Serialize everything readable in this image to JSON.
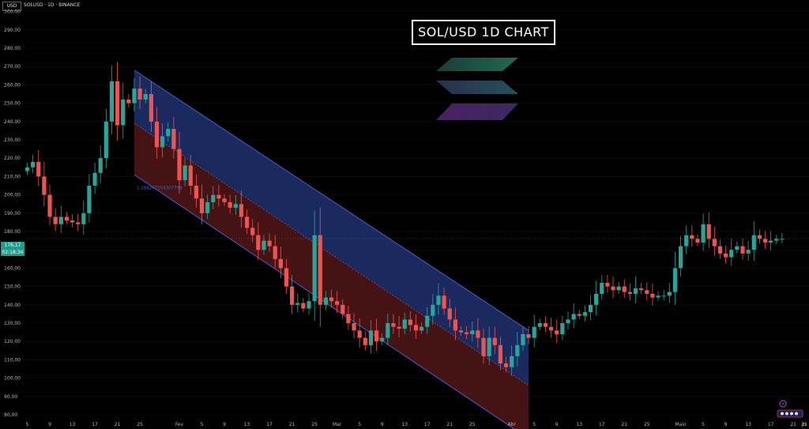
{
  "header": {
    "symbol_line": "SOLUSD · 1D · BINANCE",
    "currency": "USD"
  },
  "title": "SOL/USD 1D CHART",
  "last_price": {
    "value": "176,17",
    "countdown": "02:18:34",
    "color": "#1f9e8b"
  },
  "channel_label": "1,188207154307799",
  "colors": {
    "bull": "#26a69a",
    "bear": "#ef5350",
    "channel_upper_fill": "#1b2c63",
    "channel_lower_fill": "#4a1416",
    "channel_line": "#3d63dd"
  },
  "chart_data": {
    "type": "candlestick",
    "title": "SOL/USD 1D CHART",
    "ylabel": "USD",
    "ylim": [
      77,
      302
    ],
    "y_ticks": [
      80,
      90,
      100,
      110,
      120,
      130,
      140,
      150,
      160,
      170,
      180,
      190,
      200,
      210,
      220,
      230,
      240,
      250,
      260,
      270,
      280,
      290,
      300
    ],
    "y_tick_labels": [
      "80,00",
      "90,00",
      "100,00",
      "110,00",
      "120,00",
      "130,00",
      "140,00",
      "150,00",
      "160,00",
      "170,00",
      "180,00",
      "190,00",
      "200,00",
      "210,00",
      "220,00",
      "230,00",
      "240,00",
      "250,00",
      "260,00",
      "270,00",
      "280,00",
      "290,00",
      "300,00"
    ],
    "x_ticks": [
      {
        "label": "5",
        "i": 0
      },
      {
        "label": "9",
        "i": 4
      },
      {
        "label": "13",
        "i": 8
      },
      {
        "label": "17",
        "i": 12
      },
      {
        "label": "21",
        "i": 16
      },
      {
        "label": "25",
        "i": 20
      },
      {
        "label": "Fev",
        "i": 27
      },
      {
        "label": "5",
        "i": 31
      },
      {
        "label": "9",
        "i": 35
      },
      {
        "label": "13",
        "i": 39
      },
      {
        "label": "17",
        "i": 43
      },
      {
        "label": "21",
        "i": 47
      },
      {
        "label": "25",
        "i": 51
      },
      {
        "label": "Mar",
        "i": 55
      },
      {
        "label": "5",
        "i": 59
      },
      {
        "label": "9",
        "i": 63
      },
      {
        "label": "13",
        "i": 67
      },
      {
        "label": "17",
        "i": 71
      },
      {
        "label": "21",
        "i": 75
      },
      {
        "label": "25",
        "i": 79
      },
      {
        "label": "Abr",
        "i": 86
      },
      {
        "label": "5",
        "i": 90
      },
      {
        "label": "9",
        "i": 94
      },
      {
        "label": "13",
        "i": 98
      },
      {
        "label": "17",
        "i": 102
      },
      {
        "label": "21",
        "i": 106
      },
      {
        "label": "25",
        "i": 110
      },
      {
        "label": "Maio",
        "i": 116
      },
      {
        "label": "5",
        "i": 120
      },
      {
        "label": "9",
        "i": 124
      },
      {
        "label": "13",
        "i": 128
      },
      {
        "label": "17",
        "i": 132
      },
      {
        "label": "21",
        "i": 136
      },
      {
        "label": "25",
        "i": 140
      },
      {
        "label": "Ju",
        "i": 147
      }
    ],
    "last_price": 176.17,
    "regression_channel": {
      "start_index": 19,
      "end_index": 89,
      "upper": [
        268,
        126
      ],
      "middle": [
        239,
        96
      ],
      "lower": [
        211,
        67
      ]
    },
    "close_anchors": [
      [
        0,
        215
      ],
      [
        1,
        218
      ],
      [
        2,
        210
      ],
      [
        3,
        200
      ],
      [
        4,
        188
      ],
      [
        5,
        184
      ],
      [
        6,
        188
      ],
      [
        7,
        186
      ],
      [
        8,
        185
      ],
      [
        9,
        184
      ],
      [
        10,
        190
      ],
      [
        11,
        205
      ],
      [
        12,
        212
      ],
      [
        13,
        220
      ],
      [
        14,
        240
      ],
      [
        15,
        262
      ],
      [
        16,
        238
      ],
      [
        17,
        252
      ],
      [
        18,
        250
      ],
      [
        19,
        258
      ],
      [
        20,
        252
      ],
      [
        21,
        255
      ],
      [
        22,
        240
      ],
      [
        23,
        226
      ],
      [
        24,
        232
      ],
      [
        25,
        236
      ],
      [
        26,
        225
      ],
      [
        27,
        208
      ],
      [
        28,
        216
      ],
      [
        29,
        205
      ],
      [
        30,
        198
      ],
      [
        31,
        190
      ],
      [
        32,
        196
      ],
      [
        33,
        200
      ],
      [
        34,
        198
      ],
      [
        35,
        196
      ],
      [
        36,
        193
      ],
      [
        37,
        195
      ],
      [
        38,
        188
      ],
      [
        39,
        182
      ],
      [
        40,
        178
      ],
      [
        41,
        170
      ],
      [
        42,
        175
      ],
      [
        43,
        172
      ],
      [
        44,
        165
      ],
      [
        45,
        160
      ],
      [
        46,
        150
      ],
      [
        47,
        140
      ],
      [
        48,
        141
      ],
      [
        49,
        138
      ],
      [
        50,
        142
      ],
      [
        51,
        178
      ],
      [
        52,
        140
      ],
      [
        53,
        144
      ],
      [
        54,
        142
      ],
      [
        55,
        140
      ],
      [
        56,
        135
      ],
      [
        57,
        130
      ],
      [
        58,
        126
      ],
      [
        59,
        122
      ],
      [
        60,
        118
      ],
      [
        61,
        126
      ],
      [
        62,
        120
      ],
      [
        63,
        122
      ],
      [
        64,
        130
      ],
      [
        65,
        128
      ],
      [
        66,
        127
      ],
      [
        67,
        132
      ],
      [
        68,
        129
      ],
      [
        69,
        126
      ],
      [
        70,
        128
      ],
      [
        71,
        134
      ],
      [
        72,
        140
      ],
      [
        73,
        145
      ],
      [
        74,
        138
      ],
      [
        75,
        132
      ],
      [
        76,
        126
      ],
      [
        77,
        125
      ],
      [
        78,
        124
      ],
      [
        79,
        126
      ],
      [
        80,
        122
      ],
      [
        81,
        112
      ],
      [
        82,
        122
      ],
      [
        83,
        118
      ],
      [
        84,
        108
      ],
      [
        85,
        106
      ],
      [
        86,
        112
      ],
      [
        87,
        118
      ],
      [
        88,
        124
      ],
      [
        89,
        122
      ],
      [
        90,
        128
      ],
      [
        91,
        130
      ],
      [
        92,
        128
      ],
      [
        93,
        126
      ],
      [
        94,
        124
      ],
      [
        95,
        130
      ],
      [
        96,
        132
      ],
      [
        97,
        135
      ],
      [
        98,
        134
      ],
      [
        99,
        136
      ],
      [
        100,
        140
      ],
      [
        101,
        146
      ],
      [
        102,
        152
      ],
      [
        103,
        150
      ],
      [
        104,
        148
      ],
      [
        105,
        150
      ],
      [
        106,
        147
      ],
      [
        107,
        146
      ],
      [
        108,
        149
      ],
      [
        109,
        148
      ],
      [
        110,
        146
      ],
      [
        111,
        144
      ],
      [
        112,
        145
      ],
      [
        113,
        145
      ],
      [
        114,
        147
      ],
      [
        115,
        160
      ],
      [
        116,
        172
      ],
      [
        117,
        178
      ],
      [
        118,
        176
      ],
      [
        119,
        174
      ],
      [
        120,
        184
      ],
      [
        121,
        176
      ],
      [
        122,
        172
      ],
      [
        123,
        168
      ],
      [
        124,
        166
      ],
      [
        125,
        170
      ],
      [
        126,
        172
      ],
      [
        127,
        168
      ],
      [
        128,
        170
      ],
      [
        129,
        178
      ],
      [
        130,
        176
      ],
      [
        131,
        174
      ],
      [
        132,
        175
      ],
      [
        133,
        176
      ],
      [
        134,
        176
      ]
    ]
  }
}
